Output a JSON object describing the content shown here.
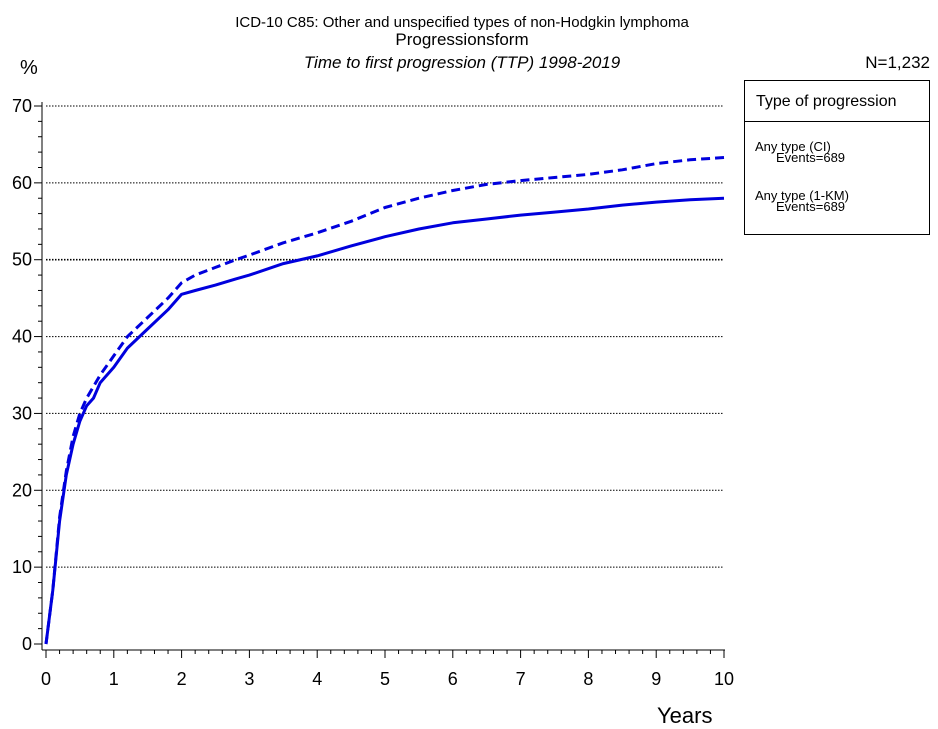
{
  "titles": {
    "line1": "ICD-10 C85: Other and unspecified types of non-Hodgkin lymphoma",
    "line2": "Progressionsform",
    "line3": "Time to first progression (TTP) 1998-2019",
    "n_label": "N=1,232"
  },
  "colors": {
    "series": "#0000dd",
    "grid": "#000000"
  },
  "chart_data": {
    "type": "line",
    "ylabel": "%",
    "xlabel": "Years",
    "xlim": [
      0,
      10
    ],
    "ylim": [
      0,
      70
    ],
    "xticks": [
      0,
      1,
      2,
      3,
      4,
      5,
      6,
      7,
      8,
      9,
      10
    ],
    "yticks": [
      0,
      10,
      20,
      30,
      40,
      50,
      60,
      70
    ],
    "grid": "horizontal dotted",
    "legend_title": "Type of progression",
    "legend_position": "right",
    "series": [
      {
        "name": "Any type (CI)",
        "events_label": "Events=689",
        "style": "solid",
        "x": [
          0,
          0.1,
          0.2,
          0.3,
          0.4,
          0.5,
          0.6,
          0.7,
          0.8,
          1.0,
          1.2,
          1.5,
          1.8,
          2.0,
          2.2,
          2.5,
          2.8,
          3.0,
          3.5,
          4.0,
          4.5,
          5.0,
          5.5,
          6.0,
          6.5,
          7.0,
          7.5,
          8.0,
          8.5,
          9.0,
          9.5,
          10.0
        ],
        "y": [
          0,
          7,
          16,
          22,
          26,
          29,
          31,
          32,
          34,
          36,
          38.5,
          41,
          43.5,
          45.5,
          46,
          46.7,
          47.5,
          48,
          49.5,
          50.5,
          51.8,
          53,
          54,
          54.8,
          55.3,
          55.8,
          56.2,
          56.6,
          57.1,
          57.5,
          57.8,
          58
        ]
      },
      {
        "name": "Any type (1-KM)",
        "events_label": "Events=689",
        "style": "dashed",
        "x": [
          0,
          0.1,
          0.2,
          0.3,
          0.4,
          0.5,
          0.6,
          0.7,
          0.8,
          1.0,
          1.2,
          1.5,
          1.8,
          2.0,
          2.2,
          2.5,
          2.8,
          3.0,
          3.5,
          4.0,
          4.5,
          5.0,
          5.5,
          6.0,
          6.5,
          7.0,
          7.5,
          8.0,
          8.5,
          9.0,
          9.5,
          10.0
        ],
        "y": [
          0,
          7,
          16.5,
          22.5,
          27,
          30,
          32,
          33.5,
          35,
          37.5,
          40,
          42.5,
          45,
          47,
          48,
          49,
          50,
          50.6,
          52.2,
          53.5,
          55,
          56.8,
          58,
          59,
          59.8,
          60.3,
          60.7,
          61.1,
          61.7,
          62.5,
          63,
          63.3
        ]
      }
    ]
  }
}
